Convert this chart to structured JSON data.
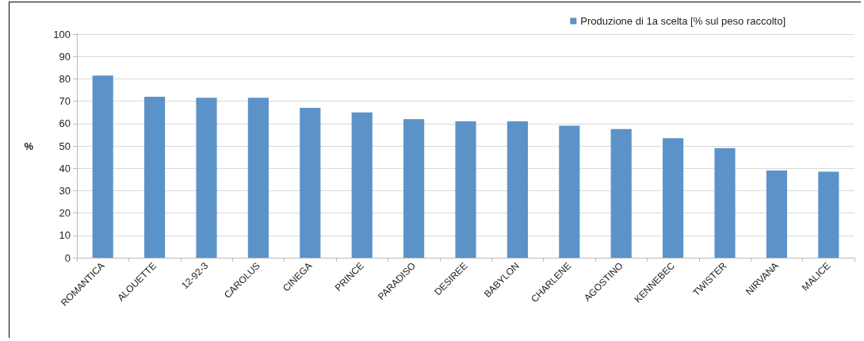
{
  "chart_data": {
    "type": "bar",
    "ylabel": "%",
    "categories": [
      "ROMANTICA",
      "ALOUETTE",
      "12-92-3",
      "CAROLUS",
      "CINEGA",
      "PRINCE",
      "PARADISO",
      "DESIREE",
      "BABYLON",
      "CHARLENE",
      "AGOSTINO",
      "KENNEBEC",
      "TWISTER",
      "NIRVANA",
      "MALICE"
    ],
    "series": [
      {
        "name": "Produzione di 1a scelta [% sul peso raccolto]",
        "color": "#5b93c9",
        "values": [
          81.5,
          72,
          71.5,
          71.5,
          67,
          65,
          62,
          61,
          61,
          59,
          57.5,
          53.5,
          49,
          39,
          38.5
        ]
      }
    ],
    "ylim": [
      0,
      100
    ],
    "yticks": [
      0,
      10,
      20,
      30,
      40,
      50,
      60,
      70,
      80,
      90,
      100
    ],
    "grid": "y",
    "legend": "top right"
  }
}
